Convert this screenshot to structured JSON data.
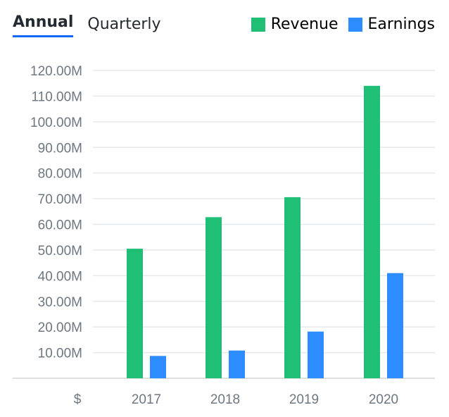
{
  "tabs": [
    {
      "label": "Annual",
      "active": true
    },
    {
      "label": "Quarterly",
      "active": false
    }
  ],
  "legend": [
    {
      "label": "Revenue",
      "color": "#1fbf75"
    },
    {
      "label": "Earnings",
      "color": "#2d8cff"
    }
  ],
  "currency_symbol": "$",
  "chart_data": {
    "type": "bar",
    "categories": [
      "2017",
      "2018",
      "2019",
      "2020"
    ],
    "series": [
      {
        "name": "Revenue",
        "color": "#1fbf75",
        "values": [
          50.5,
          62.8,
          70.6,
          114.0
        ]
      },
      {
        "name": "Earnings",
        "color": "#2d8cff",
        "values": [
          8.7,
          10.8,
          18.2,
          41.0
        ]
      }
    ],
    "yticks": [
      10,
      20,
      30,
      40,
      50,
      60,
      70,
      80,
      90,
      100,
      110,
      120
    ],
    "ytick_labels": [
      "10.00M",
      "20.00M",
      "30.00M",
      "40.00M",
      "50.00M",
      "60.00M",
      "70.00M",
      "80.00M",
      "90.00M",
      "100.00M",
      "110.00M",
      "120.00M"
    ],
    "ylim": [
      0,
      120
    ],
    "grid": true,
    "legend_position": "top-right",
    "title": "",
    "xlabel": "",
    "ylabel": ""
  }
}
